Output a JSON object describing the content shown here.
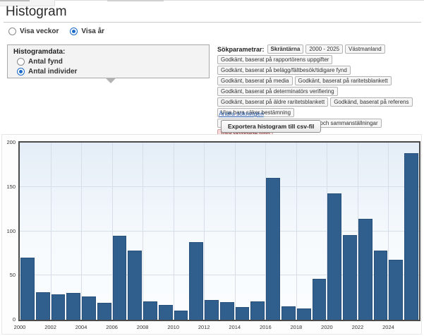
{
  "page_title": "Histogram",
  "view_toggle": {
    "options": [
      {
        "label": "Visa veckor",
        "selected": false
      },
      {
        "label": "Visa år",
        "selected": true
      }
    ]
  },
  "histogram_data_box": {
    "title": "Histogramdata:",
    "options": [
      {
        "label": "Antal fynd",
        "selected": false
      },
      {
        "label": "Antal individer",
        "selected": true
      }
    ]
  },
  "search_params": {
    "label": "Sökparametrar:",
    "rows": [
      {
        "tags": [
          {
            "label": "Skräntärna",
            "emph": true
          },
          {
            "label": "2000 - 2025"
          },
          {
            "label": "Västmanland"
          }
        ]
      },
      {
        "tags": [
          {
            "label": "Godkänt, baserat på rapportörens uppgifter"
          }
        ]
      },
      {
        "tags": [
          {
            "label": "Godkänt, baserat på belägg/fältbesök/tidigare fynd"
          }
        ]
      },
      {
        "tags": [
          {
            "label": "Godkänt, baserat på media"
          },
          {
            "label": "Godkänt, baserat på raritetsblankett"
          }
        ]
      },
      {
        "tags": [
          {
            "label": "Godkänt, baserat på determinatörs verifiering"
          }
        ]
      },
      {
        "tags": [
          {
            "label": "Godkänt, baserat på äldre raritetsblankett"
          },
          {
            "label": "Godkänd, baserat på referens"
          }
        ]
      },
      {
        "tags": [
          {
            "label": "Visa bara säker bestämning"
          }
        ]
      },
      {
        "tags": [
          {
            "label": "Visa inte fynd som ingår i bedömningar och sammanställningar"
          }
        ]
      },
      {
        "tags": [
          {
            "label": "Visa skyddade fynd",
            "style": "warning"
          }
        ]
      }
    ],
    "change_link": "Ändra sökningen"
  },
  "export_button_label": "Exportera histogram till csv-fil",
  "chart_data": {
    "type": "bar",
    "title": "",
    "xlabel": "",
    "ylabel": "",
    "categories": [
      2000,
      2001,
      2002,
      2003,
      2004,
      2005,
      2006,
      2007,
      2008,
      2009,
      2010,
      2011,
      2012,
      2013,
      2014,
      2015,
      2016,
      2017,
      2018,
      2019,
      2020,
      2021,
      2022,
      2023,
      2024,
      2025
    ],
    "values": [
      70,
      31,
      29,
      30,
      26,
      19,
      95,
      78,
      21,
      17,
      10,
      88,
      22,
      20,
      14,
      21,
      160,
      15,
      13,
      46,
      143,
      96,
      114,
      78,
      68,
      188
    ],
    "ylim": [
      0,
      200
    ],
    "yticks": [
      0,
      50,
      100,
      150,
      200
    ],
    "xtick_years": [
      2000,
      2002,
      2004,
      2006,
      2008,
      2010,
      2012,
      2014,
      2016,
      2018,
      2020,
      2022,
      2024
    ],
    "grid": true,
    "legend_position": "none",
    "bar_color": "#305f8d",
    "bar_border_color": "#27517b",
    "plot_bg_top": "#e4edf7",
    "plot_bg_bottom": "#fbfdff"
  },
  "colors": {
    "accent": "#1b6ac9",
    "bar": "#305f8d",
    "link": "#2a5db0",
    "warning_bg": "#f7d9d9",
    "warning_text": "#6d1f1f",
    "grid": "#d7dee8"
  }
}
